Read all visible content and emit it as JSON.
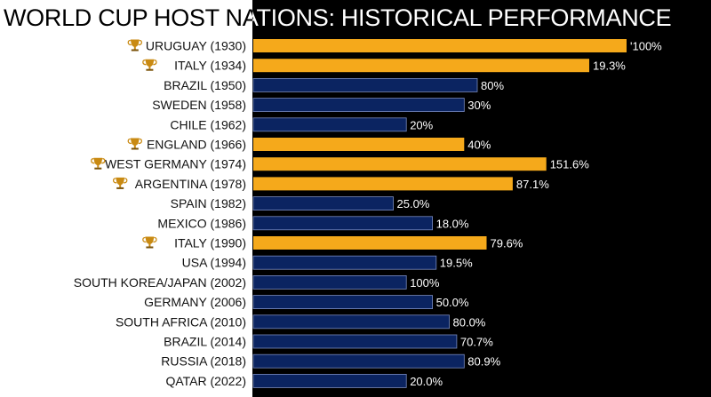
{
  "chart_data": {
    "type": "bar",
    "orientation": "horizontal",
    "title": "WORLD CUP HOST NATIONS: HISTORICAL PERFORMANCE",
    "xlabel": "",
    "ylabel": "",
    "xlim": [
      0,
      200
    ],
    "grid": false,
    "legend": "none",
    "colors": {
      "winner": "#f5a91b",
      "other": "#0b2461",
      "bar_border": "#7a8cc0"
    },
    "icon": "trophy-icon",
    "categories": [
      "URUGUAY (1930)",
      "ITALY (1934)",
      "BRAZIL (1950)",
      "SWEDEN (1958)",
      "CHILE (1962)",
      "ENGLAND (1966)",
      "WEST GERMANY (1974)",
      "ARGENTINA (1978)",
      "SPAIN (1982)",
      "MEXICO (1986)",
      "ITALY (1990)",
      "USA (1994)",
      "SOUTH KOREA/JAPAN (2002)",
      "GERMANY (2006)",
      "SOUTH AFRICA (2010)",
      "BRAZIL (2014)",
      "RUSSIA (2018)",
      "QATAR (2022)"
    ],
    "values": [
      100,
      90,
      60,
      56.5,
      41,
      56.5,
      78.5,
      69.5,
      37.5,
      48,
      62.5,
      49,
      41,
      48,
      52.5,
      54.5,
      56.5,
      41
    ],
    "value_labels": [
      "'100%",
      "19.3%",
      "80%",
      "30%",
      "20%",
      "40%",
      "151.6%",
      "87.1%",
      "25.0%",
      "18.0%",
      "79.6%",
      "19.5%",
      "100%",
      "50.0%",
      "80.0%",
      "70.7%",
      "80.9%",
      "20.0%"
    ],
    "champion": [
      true,
      true,
      false,
      false,
      false,
      true,
      true,
      true,
      false,
      false,
      true,
      false,
      false,
      false,
      false,
      false,
      false,
      false
    ]
  }
}
